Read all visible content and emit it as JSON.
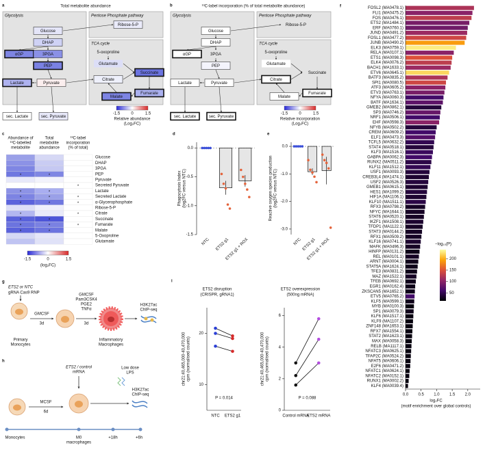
{
  "panel_a": {
    "letter": "a",
    "title": "Total metabolite abundance",
    "sections": [
      "Glycolysis",
      "Pentose Phosphate pathway",
      "TCA cycle"
    ],
    "nodes": [
      {
        "label": "Glucose",
        "fill": "#e4e5f8",
        "outline": "thin"
      },
      {
        "label": "DHAP",
        "fill": "#cfd2f5",
        "outline": "thin"
      },
      {
        "label": "αGP",
        "fill": "#7e85e3",
        "outline": "thick"
      },
      {
        "label": "3PGA",
        "fill": "#8a90e6",
        "outline": "thin"
      },
      {
        "label": "PEP",
        "fill": "#7a81e3",
        "outline": "thick"
      },
      {
        "label": "Pyruvate",
        "fill": "#fbeeee",
        "outline": "thin"
      },
      {
        "label": "Lactate",
        "fill": "#aeb2ef",
        "outline": "thick"
      },
      {
        "label": "sec. Lactate",
        "fill": "#ffffff",
        "outline": "thin"
      },
      {
        "label": "sec. Pyruvate",
        "fill": "#e8e9fa",
        "outline": "thin"
      },
      {
        "label": "Ribose-5-P",
        "fill": "#eaebfa",
        "outline": "thin"
      },
      {
        "label": "5-oxoproline",
        "fill": "none",
        "outline": "none"
      },
      {
        "label": "Glutamate",
        "fill": "#dcdef7",
        "outline": "none"
      },
      {
        "label": "Citrate",
        "fill": "#eef0fb",
        "outline": "thin"
      },
      {
        "label": "Succinate",
        "fill": "#6c74e0",
        "outline": "thick"
      },
      {
        "label": "Malate",
        "fill": "#7d84e3",
        "outline": "thick"
      },
      {
        "label": "Fumarate",
        "fill": "#aab0ef",
        "outline": "thick"
      }
    ],
    "legend": {
      "ticks": [
        -1.5,
        0,
        1.5
      ],
      "title": [
        "Relative abundance",
        "(Log₂FC)"
      ]
    }
  },
  "panel_b": {
    "letter": "b",
    "title": "¹³C-label incorporation (% of total metabolite abundance)",
    "sections": [
      "Glycolysis",
      "Pentose Phosphate pathway",
      "TCA cycle"
    ],
    "nodes": [
      {
        "label": "Glucose",
        "fill": "#ffffff",
        "outline": "thin"
      },
      {
        "label": "DHAP",
        "fill": "#ffffff",
        "outline": "thin"
      },
      {
        "label": "αGP",
        "fill": "#ffffff",
        "outline": "thick"
      },
      {
        "label": "3PGA",
        "fill": "none",
        "outline": "none"
      },
      {
        "label": "PEP",
        "fill": "#f4f4fc",
        "outline": "thin"
      },
      {
        "label": "Pyruvate",
        "fill": "#ffffff",
        "outline": "thin"
      },
      {
        "label": "Lactate",
        "fill": "#ffffff",
        "outline": "thin"
      },
      {
        "label": "sec. Lactate",
        "fill": "#ffffff",
        "outline": "thick"
      },
      {
        "label": "sec. Pyruvate",
        "fill": "#ffffff",
        "outline": "thick"
      },
      {
        "label": "Ribose-5-P",
        "fill": "none",
        "outline": "none"
      },
      {
        "label": "5-oxoproline",
        "fill": "none",
        "outline": "none"
      },
      {
        "label": "Glutamate",
        "fill": "#ffffff",
        "outline": "none"
      },
      {
        "label": "Citrate",
        "fill": "#ffffff",
        "outline": "thick"
      },
      {
        "label": "Succinate",
        "fill": "none",
        "outline": "none"
      },
      {
        "label": "Malate",
        "fill": "#ffffff",
        "outline": "thin"
      },
      {
        "label": "Fumarate",
        "fill": "#ffffff",
        "outline": "thick"
      }
    ],
    "legend": {
      "ticks": [
        -1.5,
        0,
        1.5
      ],
      "title": [
        "Relative incorporation",
        "(Log₂FC)"
      ]
    }
  },
  "panel_c": {
    "letter": "c",
    "headers": [
      [
        "Abundance of",
        "¹³C-labelled",
        "metabolite"
      ],
      [
        "Total",
        "metabolite",
        "abundance"
      ],
      [
        "¹³C-label",
        "incorporation",
        "(% of total)"
      ]
    ],
    "rows": [
      {
        "name": "Glucose",
        "colors": [
          "#9aa0e8",
          "#d6d8f5",
          "#ffffff"
        ],
        "stars": [
          null,
          null,
          null
        ]
      },
      {
        "name": "DHAP",
        "colors": [
          "#8c92e6",
          "#c9ccf3",
          "#ffffff"
        ],
        "stars": [
          null,
          null,
          null
        ]
      },
      {
        "name": "3PGA",
        "colors": [
          "#7f86e3",
          "#c5c8f2",
          "#ffffff"
        ],
        "stars": [
          null,
          null,
          null
        ]
      },
      {
        "name": "PEP",
        "colors": [
          "#6f77e0",
          "#7f86e3",
          "#ffffff"
        ],
        "stars": [
          "*",
          "*",
          null
        ]
      },
      {
        "name": "Pyruvate",
        "colors": [
          "#e8e9fa",
          "#f3f3fc",
          "#ffffff"
        ],
        "stars": [
          null,
          null,
          null
        ]
      },
      {
        "name": "Secreted Pyruvate",
        "colors": [
          "#ffffff",
          "#ffffff",
          "#ffffff"
        ],
        "stars": [
          null,
          null,
          "*"
        ]
      },
      {
        "name": "Lactate",
        "colors": [
          "#8d93e6",
          "#a9aef0",
          "#ffffff"
        ],
        "stars": [
          "*",
          "*",
          null
        ]
      },
      {
        "name": "Secreted Lactate",
        "colors": [
          "#7c83e3",
          "#9aa0e8",
          "#ffffff"
        ],
        "stars": [
          "*",
          "*",
          "*"
        ]
      },
      {
        "name": "α-Glycerophosphate",
        "colors": [
          "#5b63dc",
          "#6f77e0",
          "#ffffff"
        ],
        "stars": [
          "*",
          "*",
          "*"
        ]
      },
      {
        "name": "Ribose-5-P",
        "colors": [
          "#dcdef7",
          "#eeeffc",
          "#ffffff"
        ],
        "stars": [
          null,
          null,
          null
        ]
      },
      {
        "name": "Citrate",
        "colors": [
          "#b3b7f0",
          "#e9eafa",
          "#ffffff"
        ],
        "stars": [
          "*",
          null,
          "*"
        ]
      },
      {
        "name": "Succinate",
        "colors": [
          "#5a62db",
          "#4d55d8",
          "#ffffff"
        ],
        "stars": [
          "*",
          "*",
          null
        ]
      },
      {
        "name": "Fumarate",
        "colors": [
          "#6c74df",
          "#7a81e2",
          "#ffffff"
        ],
        "stars": [
          "*",
          "*",
          "*"
        ]
      },
      {
        "name": "Malate",
        "colors": [
          "#5a62db",
          "#6c74df",
          "#ffffff"
        ],
        "stars": [
          "*",
          "*",
          null
        ]
      },
      {
        "name": "5-Oxoproline",
        "colors": [
          "#d5d8f5",
          "#e5e6f9",
          "#ffffff"
        ],
        "stars": [
          null,
          null,
          null
        ]
      },
      {
        "name": "Glutamate",
        "colors": [
          "#c0c4f2",
          "#e0e2f8",
          "#ffffff"
        ],
        "stars": [
          null,
          null,
          null
        ]
      }
    ],
    "legend": {
      "ticks": [
        -1.5,
        0,
        1.5
      ],
      "title": "(log₂FC)"
    }
  },
  "chart_data": [
    {
      "letter": "d",
      "type": "bar",
      "ylabel": [
        "Phagocytosis Index",
        "(log2FC versus NTC)"
      ],
      "categories": [
        "NTC",
        "ETS2 g1",
        "ETS2 g1 + ROX"
      ],
      "values": [
        0,
        -0.69,
        -0.57
      ],
      "errors": [
        0,
        0.12,
        0.1
      ],
      "points": [
        [
          0,
          0,
          0,
          0,
          0
        ],
        [
          -0.45,
          -0.62,
          -0.7,
          -0.98,
          -1.05
        ],
        [
          -0.38,
          -0.5,
          -0.62,
          -0.72,
          -0.85
        ]
      ],
      "point_colors": [
        "#3b4fd8",
        "#e4643c",
        "#e4643c"
      ],
      "bar_color": "#e6e6e6",
      "ylim": [
        -1.5,
        0.1
      ],
      "yticks": [
        {
          "value": 0,
          "label": "0.0"
        },
        -0.5,
        {
          "value": -1,
          "label": "-1.0"
        },
        -1.5
      ]
    },
    {
      "letter": "e",
      "type": "bar",
      "ylabel": [
        "Reactive oxygen species production",
        "(log2FC versus NTC)"
      ],
      "categories": [
        "NTC",
        "ETS2 g1",
        "ETS2 g1 + ROX"
      ],
      "values": [
        0,
        -0.92,
        -0.88
      ],
      "errors": [
        0,
        0.12,
        0.5
      ],
      "points": [
        [
          0,
          0,
          0,
          0,
          0
        ],
        [
          -0.5,
          -0.85,
          -0.95,
          -1.1,
          -1.3
        ],
        [
          -0.3,
          -0.5,
          -0.6,
          -0.8,
          -2.95
        ]
      ],
      "point_colors": [
        "#3b4fd8",
        "#e4643c",
        "#e4643c"
      ],
      "bar_color": "#e6e6e6",
      "ylim": [
        -3.2,
        0.15
      ],
      "yticks": [
        {
          "value": 0,
          "label": "0.0"
        },
        {
          "value": -1,
          "label": "-1.0"
        },
        {
          "value": -2,
          "label": "-2.0"
        },
        {
          "value": -3,
          "label": "-3.0"
        }
      ]
    },
    {
      "letter": "f",
      "type": "hbar",
      "xlabel": [
        "log₂FC",
        "(motif enrichment over global controls)"
      ],
      "categories": [
        "FOSL2 (MA0478.1)",
        "FLI1 (MA0475.2)",
        "FOS (MA0476.1)",
        "ETS2 (MA1484.1)",
        "ERF (MA0760.1)",
        "JUND (MA0491.2)",
        "FOSL1 (MA0477.2)",
        "JUNB (MA0490.2)",
        "ELK3 (MA0759.1)",
        "RELA (MA0107.1)",
        "ETS1 (MA0098.3)",
        "ELK4 (MA0076.2)",
        "BACH1 (MA1633.1)",
        "ETV6 (MA0645.1)",
        "BATF3 (MA0835.2)",
        "SPI1 (MA0080.5)",
        "ATF3 (MA0605.2)",
        "ETV3 (MA0763.1)",
        "NFYA (MA0060.3)",
        "BATF (MA1634.1)",
        "GMEB2 (MA0862.1)",
        "SP3 (MA0746.2)",
        "NRF1 (MA0506.1)",
        "EHF (MA0598.3)",
        "NFYB (MA0502.2)",
        "CREM (MA0609.2)",
        "ELF1 (MA0473.3)",
        "TCFL5 (MA0632.2)",
        "STAT4 (MA0518.1)",
        "KLF3 (MA1516.1)",
        "GABPA (MA0062.3)",
        "RUNX2 (MA0511.2)",
        "KLF11 (MA1512.1)",
        "USF1 (MA0093.3)",
        "CREB3L4 (MA1474.1)",
        "USF2 (MA0526.3)",
        "GMEB1 (MA0615.1)",
        "HES1 (MA1099.2)",
        "HIF1A (MA1106.1)",
        "KLF10 (MA1511.1)",
        "RFX3 (MA0798.2)",
        "NFYC (MA1644.1)",
        "STAT6 (MA0520.1)",
        "IKZF1 (MA1508.1)",
        "TFDP1 (MA1122.1)",
        "STAT3 (MA0144.2)",
        "RFX1 (MA0509.2)",
        "KLF16 (MA0741.1)",
        "MAFK (MA0496.3)",
        "HINFP (MA0131.2)",
        "REL (MA0101.1)",
        "ARNT (MA0004.1)",
        "STAT5A (MA1624.1)",
        "TFE3 (MA0831.2)",
        "MAZ (MA1522.1)",
        "TFEB (MA0692.1)",
        "EGR1 (MA0162.4)",
        "ZKSCAN5 (MA1652.1)",
        "ETV5 (MA0765.2)",
        "KLF5 (MA0599.1)",
        "MYB (MA0100.3)",
        "SP1 (MA0079.3)",
        "KLF6 (MA1517.1)",
        "KLF9 (MA1107.2)",
        "ZNF148 (MA1653.1)",
        "RFX7 (MA1554.1)",
        "STAT2 (MA1623.1)",
        "MAX (MA0058.3)",
        "RELB (MA1117.1)",
        "NFATC3 (MA0625.1)",
        "TFAP2C (MA0524.2)",
        "NFAT5 (MA0606.1)",
        "E2F6 (MA0471.2)",
        "NFATC1 (MA0624.1)",
        "NFATC2 (MA0152.1)",
        "RUNX1 (MA0002.2)",
        "KLF4 (MA0039.4)"
      ],
      "values": [
        2.2,
        2.15,
        2.12,
        2.05,
        2.0,
        1.98,
        1.95,
        1.9,
        1.62,
        1.55,
        1.5,
        1.48,
        1.45,
        1.4,
        1.35,
        1.3,
        1.28,
        1.25,
        1.22,
        1.2,
        1.15,
        1.12,
        1.1,
        1.08,
        1.0,
        0.97,
        0.95,
        0.92,
        0.9,
        0.88,
        0.85,
        0.83,
        0.8,
        0.77,
        0.75,
        0.73,
        0.71,
        0.69,
        0.67,
        0.65,
        0.63,
        0.61,
        0.59,
        0.57,
        0.55,
        0.53,
        0.51,
        0.49,
        0.47,
        0.45,
        0.43,
        0.41,
        0.39,
        0.37,
        0.35,
        0.33,
        0.31,
        0.3,
        0.29,
        0.28,
        0.27,
        0.26,
        0.25,
        0.24,
        0.23,
        0.22,
        0.21,
        0.2,
        0.19,
        0.18,
        0.17,
        0.16,
        0.15,
        0.13,
        0.12,
        0.1,
        0.08
      ],
      "pvalues": [
        120,
        100,
        130,
        90,
        85,
        110,
        140,
        190,
        230,
        100,
        150,
        130,
        110,
        220,
        120,
        140,
        100,
        90,
        60,
        75,
        40,
        80,
        60,
        100,
        40,
        60,
        70,
        50,
        40,
        55,
        60,
        45,
        50,
        40,
        35,
        40,
        35,
        40,
        35,
        45,
        30,
        30,
        30,
        35,
        30,
        30,
        30,
        35,
        30,
        25,
        30,
        25,
        25,
        25,
        30,
        25,
        25,
        25,
        60,
        25,
        20,
        25,
        20,
        20,
        20,
        20,
        20,
        20,
        20,
        20,
        20,
        20,
        20,
        20,
        20,
        20,
        20
      ],
      "xlim": [
        0,
        2.4
      ],
      "xticks": [
        {
          "value": 0,
          "label": "0.0"
        },
        0.5,
        {
          "value": 1,
          "label": "1.0"
        },
        1.5,
        {
          "value": 2,
          "label": "2.0"
        }
      ],
      "colorbar": {
        "title": "−log₁₀(P)",
        "clim": [
          15,
          240
        ],
        "ticks": [
          50,
          100,
          150,
          200
        ]
      },
      "colormap": [
        "#000004",
        "#420a68",
        "#932667",
        "#dd513a",
        "#fca50a",
        "#fcffa4"
      ]
    },
    {
      "letter": "i",
      "type": "pairs",
      "title": "ETS2 disruption",
      "subtitle": "(CRISPR, gRNA1)",
      "ylabel": [
        "chr21:40,465,000-40,470,000",
        "cpm (normalised counts)"
      ],
      "categories": [
        "NTC",
        "ETS2 g1"
      ],
      "colors": [
        "#2b3fd6",
        "#d62b2b"
      ],
      "series": [
        {
          "values": [
            21,
            19.5
          ]
        },
        {
          "values": [
            20,
            19
          ]
        },
        {
          "values": [
            17.5,
            16.5
          ]
        }
      ],
      "annotation": "P = 0.014",
      "ylim": [
        5,
        25
      ],
      "yticks": [
        10,
        20
      ]
    },
    {
      "type": "pairs",
      "title": "ETS2 overexpression",
      "subtitle": "(500ng mRNA)",
      "ylabel": [
        "chr21:40,465,000-40,470,000",
        "cpm (normalised counts)"
      ],
      "categories": [
        "Control mRNA",
        "ETS2 mRNA"
      ],
      "colors": [
        "#111111",
        "#b44fe0"
      ],
      "series": [
        {
          "values": [
            3.0,
            5.8
          ]
        },
        {
          "values": [
            2.2,
            4.5
          ]
        },
        {
          "values": [
            1.6,
            3.0
          ]
        }
      ],
      "annotation": "P = 0.088",
      "ylim": [
        0,
        6.5
      ],
      "yticks": [
        0,
        2,
        4,
        6
      ]
    }
  ],
  "panel_g": {
    "letter": "g",
    "texts": [
      "ETS2 or NTC",
      "gRNA Cas9 RNP",
      "GMCSF",
      "3d",
      "GMCSF",
      "Pam3CSK4",
      "PGE2",
      "TNFα",
      "3d",
      "H3K27ac",
      "ChIP-seq",
      "Primary",
      "Monocytes",
      "Inflammatory",
      "Macrophages"
    ]
  },
  "panel_h": {
    "letter": "h",
    "texts": [
      "ETS2 / control",
      "mRNA",
      "Low dose",
      "LPS",
      "MCSF",
      "6d",
      "H3K27ac",
      "ChIP-seq",
      "Monocytes",
      "M0",
      "macrophages",
      "+18h",
      "+6h"
    ]
  }
}
